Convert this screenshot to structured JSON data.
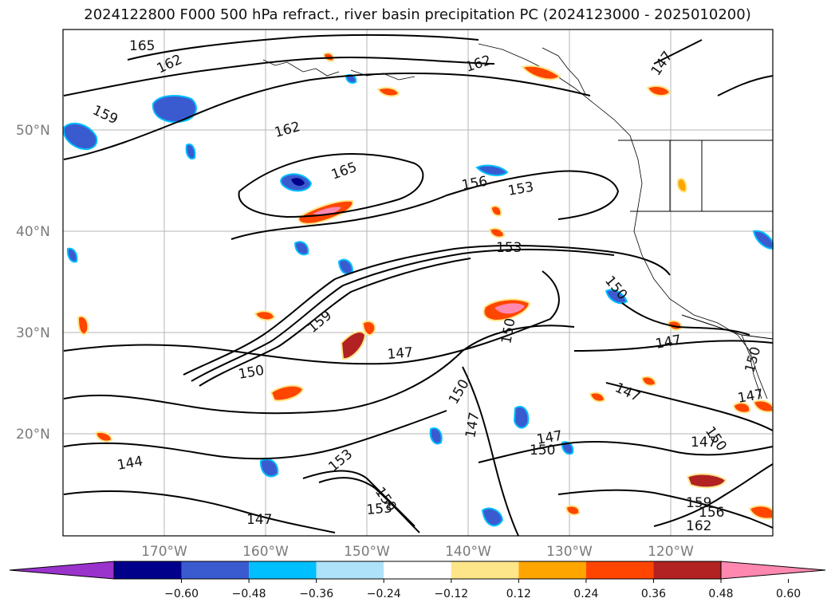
{
  "title": "2024122800 F000 500 hPa refract., river basin precipitation PC (2024123000 - 2025010200)",
  "map": {
    "lat_labels": [
      "50°N",
      "40°N",
      "30°N",
      "20°N"
    ],
    "lon_labels": [
      "170°W",
      "160°W",
      "150°W",
      "140°W",
      "130°W",
      "120°W"
    ],
    "contour_labels": [
      "165",
      "162",
      "159",
      "162",
      "165",
      "162",
      "156",
      "153",
      "153",
      "150",
      "159",
      "147",
      "150",
      "150",
      "147",
      "150",
      "147",
      "147",
      "147",
      "150",
      "147",
      "150",
      "144",
      "153",
      "150",
      "153",
      "147",
      "156",
      "159",
      "162",
      "147",
      "147",
      "150"
    ]
  },
  "colorbar": {
    "ticks": [
      "−0.60",
      "−0.48",
      "−0.36",
      "−0.24",
      "−0.12",
      "0.12",
      "0.24",
      "0.36",
      "0.48",
      "0.60"
    ],
    "colors": [
      "#9933cc",
      "#00008b",
      "#3a5bd0",
      "#00bfff",
      "#aee2fa",
      "#ffffff",
      "#fde68a",
      "#ffa500",
      "#ff4500",
      "#b22222",
      "#ff88b0"
    ]
  },
  "colors": {
    "neg_strong": "#3a5bd0",
    "neg_dark": "#00008b",
    "neg_light": "#aee2fa",
    "neg_mid": "#00bfff",
    "pos_light": "#fde68a",
    "pos_mid": "#ffa500",
    "pos_strong": "#ff4500",
    "pos_dark": "#b22222",
    "pos_max": "#ff88b0"
  }
}
